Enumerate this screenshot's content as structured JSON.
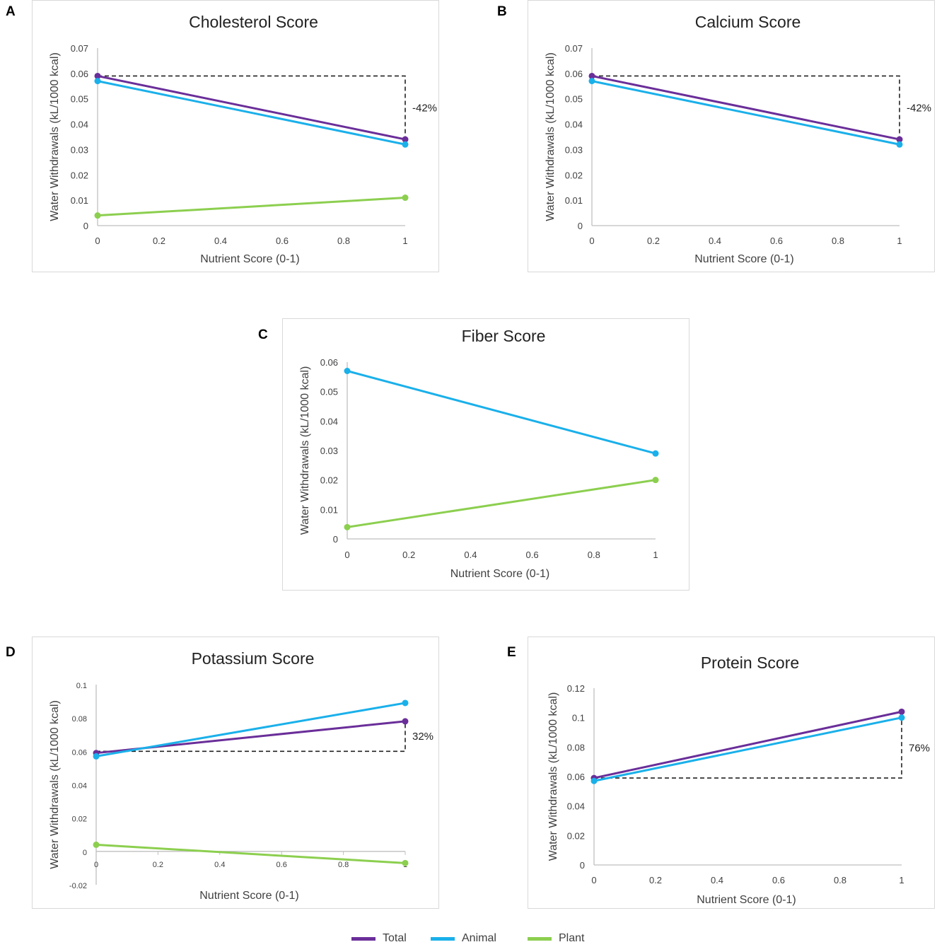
{
  "panel_letters": [
    "A",
    "B",
    "C",
    "D",
    "E"
  ],
  "legend": [
    {
      "name": "Total",
      "color": "#6a2e99"
    },
    {
      "name": "Animal",
      "color": "#1ab0ea"
    },
    {
      "name": "Plant",
      "color": "#8ccf4f"
    }
  ],
  "chart_data": [
    {
      "type": "line",
      "title": "Cholesterol Score",
      "xlabel": "Nutrient Score (0-1)",
      "ylabel": "Water Withdrawals (kL/1000 kcal)",
      "xlim": [
        0,
        1
      ],
      "ylim": [
        0,
        0.07
      ],
      "xticks": [
        "0",
        "0.2",
        "0.4",
        "0.6",
        "0.8",
        "1"
      ],
      "yticks": [
        "0",
        "0.01",
        "0.02",
        "0.03",
        "0.04",
        "0.05",
        "0.06",
        "0.07"
      ],
      "series": [
        {
          "name": "Total",
          "x": [
            0,
            1
          ],
          "values": [
            0.059,
            0.034
          ]
        },
        {
          "name": "Animal",
          "x": [
            0,
            1
          ],
          "values": [
            0.057,
            0.032
          ]
        },
        {
          "name": "Plant",
          "x": [
            0,
            1
          ],
          "values": [
            0.004,
            0.011
          ]
        }
      ],
      "annotation": {
        "label": "-42%",
        "from": 0.059,
        "to": 0.034
      }
    },
    {
      "type": "line",
      "title": "Calcium Score",
      "xlabel": "Nutrient Score (0-1)",
      "ylabel": "Water Withdrawals (kL/1000 kcal)",
      "xlim": [
        0,
        1
      ],
      "ylim": [
        0,
        0.07
      ],
      "xticks": [
        "0",
        "0.2",
        "0.4",
        "0.6",
        "0.8",
        "1"
      ],
      "yticks": [
        "0",
        "0.01",
        "0.02",
        "0.03",
        "0.04",
        "0.05",
        "0.06",
        "0.07"
      ],
      "series": [
        {
          "name": "Total",
          "x": [
            0,
            1
          ],
          "values": [
            0.059,
            0.034
          ]
        },
        {
          "name": "Animal",
          "x": [
            0,
            1
          ],
          "values": [
            0.057,
            0.032
          ]
        }
      ],
      "annotation": {
        "label": "-42%",
        "from": 0.059,
        "to": 0.034
      }
    },
    {
      "type": "line",
      "title": "Fiber Score",
      "xlabel": "Nutrient Score (0-1)",
      "ylabel": "Water Withdrawals (kL/1000 kcal)",
      "xlim": [
        0,
        1
      ],
      "ylim": [
        0,
        0.06
      ],
      "xticks": [
        "0",
        "0.2",
        "0.4",
        "0.6",
        "0.8",
        "1"
      ],
      "yticks": [
        "0",
        "0.01",
        "0.02",
        "0.03",
        "0.04",
        "0.05",
        "0.06"
      ],
      "series": [
        {
          "name": "Animal",
          "x": [
            0,
            1
          ],
          "values": [
            0.057,
            0.029
          ]
        },
        {
          "name": "Plant",
          "x": [
            0,
            1
          ],
          "values": [
            0.004,
            0.02
          ]
        }
      ]
    },
    {
      "type": "line",
      "title": "Potassium Score",
      "xlabel": "Nutrient Score (0-1)",
      "ylabel": "Water Withdrawals (kL/1000 kcal)",
      "xlim": [
        0,
        1
      ],
      "ylim": [
        -0.02,
        0.1
      ],
      "xticks": [
        "0",
        "0.2",
        "0.4",
        "0.6",
        "0.8",
        "1"
      ],
      "yticks": [
        "-0.02",
        "0",
        "0.02",
        "0.04",
        "0.06",
        "0.08",
        "0.1"
      ],
      "series": [
        {
          "name": "Total",
          "x": [
            0,
            1
          ],
          "values": [
            0.059,
            0.078
          ]
        },
        {
          "name": "Animal",
          "x": [
            0,
            1
          ],
          "values": [
            0.057,
            0.089
          ]
        },
        {
          "name": "Plant",
          "x": [
            0,
            1
          ],
          "values": [
            0.004,
            -0.007
          ]
        }
      ],
      "annotation": {
        "label": "32%",
        "from": 0.06,
        "to": 0.078
      }
    },
    {
      "type": "line",
      "title": "Protein Score",
      "xlabel": "Nutrient Score (0-1)",
      "ylabel": "Water Withdrawals (kL/1000 kcal)",
      "xlim": [
        0,
        1
      ],
      "ylim": [
        0,
        0.12
      ],
      "xticks": [
        "0",
        "0.2",
        "0.4",
        "0.6",
        "0.8",
        "1"
      ],
      "yticks": [
        "0",
        "0.02",
        "0.04",
        "0.06",
        "0.08",
        "0.1",
        "0.12"
      ],
      "series": [
        {
          "name": "Total",
          "x": [
            0,
            1
          ],
          "values": [
            0.059,
            0.104
          ]
        },
        {
          "name": "Animal",
          "x": [
            0,
            1
          ],
          "values": [
            0.057,
            0.1
          ]
        }
      ],
      "annotation": {
        "label": "76%",
        "from": 0.059,
        "to": 0.1
      }
    }
  ]
}
